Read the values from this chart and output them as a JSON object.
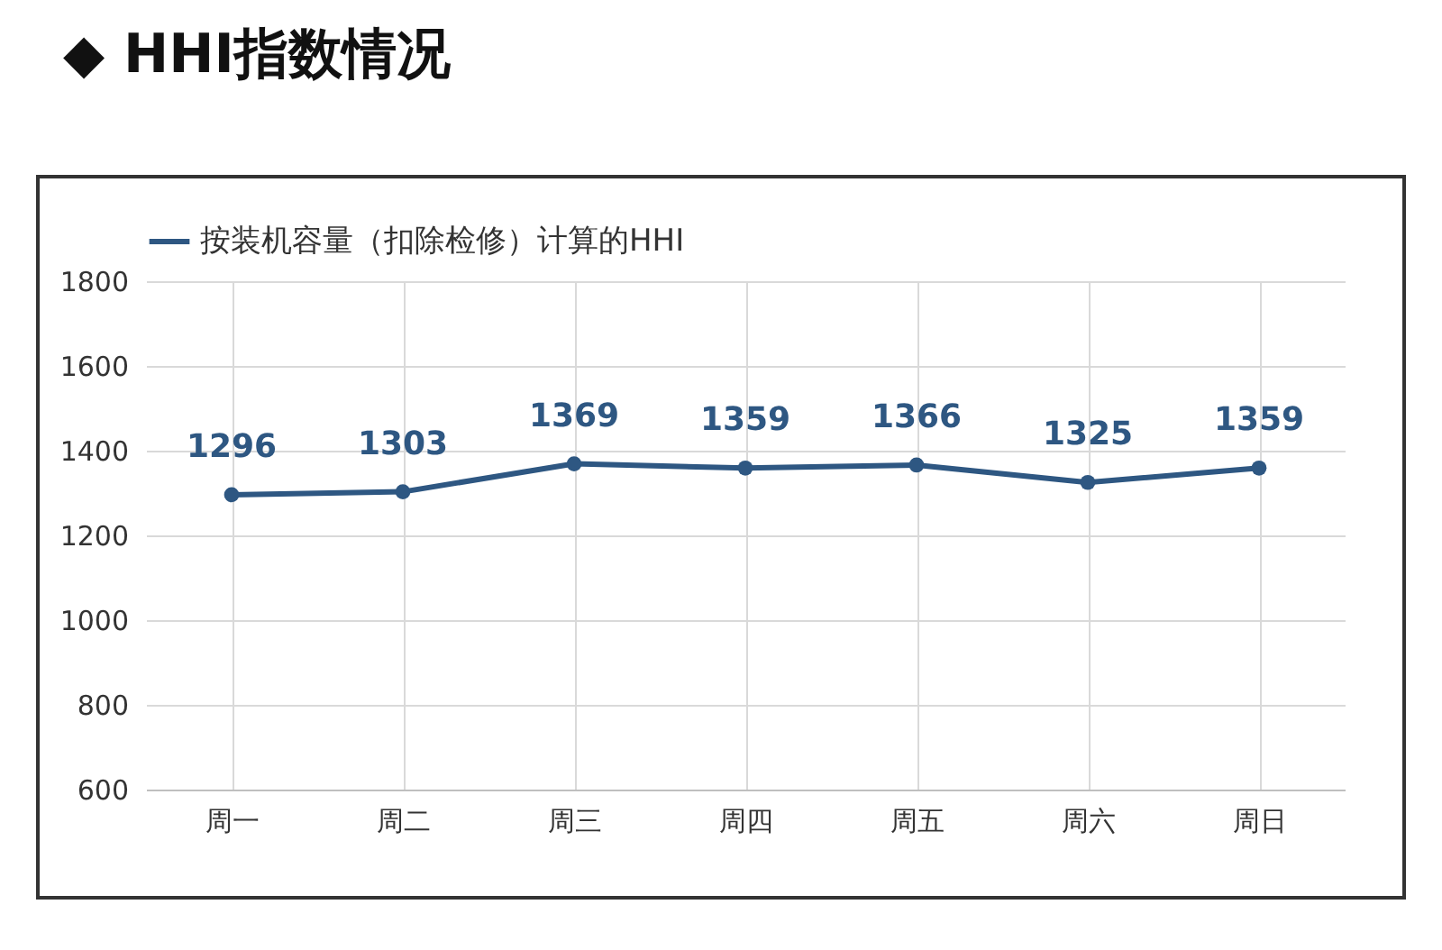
{
  "chart_data": {
    "type": "line",
    "title": "◆ HHI指数情况",
    "categories": [
      "周一",
      "周二",
      "周三",
      "周四",
      "周五",
      "周六",
      "周日"
    ],
    "series": [
      {
        "name": "按装机容量（扣除检修）计算的HHI",
        "color": "#2e5782",
        "values": [
          1296,
          1303,
          1369,
          1359,
          1366,
          1325,
          1359
        ]
      }
    ],
    "ylim": [
      600,
      1800
    ],
    "yticks": [
      600,
      800,
      1000,
      1200,
      1400,
      1600,
      1800
    ],
    "grid": true,
    "legend": "top",
    "marker": "circle",
    "line_style": "solid",
    "data_labels": true
  }
}
